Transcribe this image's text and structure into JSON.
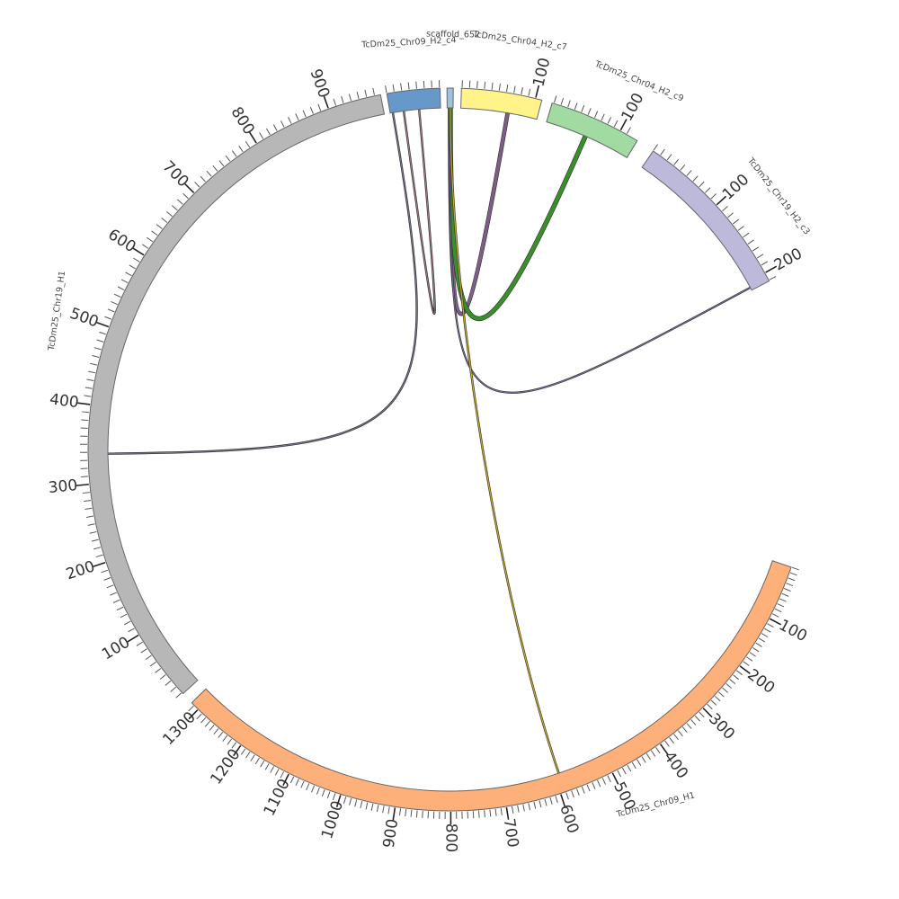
{
  "diagram": {
    "type": "circos",
    "segments": [
      {
        "id": "chr09_h1",
        "label": "TcDm25_Chr09_H1",
        "color": "#fdb07a",
        "length": 1340,
        "ticks": [
          "100",
          "200",
          "300",
          "400",
          "500",
          "600",
          "700",
          "800",
          "900",
          "1000",
          "1100",
          "1200",
          "1300"
        ]
      },
      {
        "id": "chr19_h1",
        "label": "TcDm25_Chr19_H1",
        "color": "#b7b7b7",
        "length": 960,
        "ticks": [
          "100",
          "200",
          "300",
          "400",
          "500",
          "600",
          "700",
          "800",
          "900"
        ]
      },
      {
        "id": "chr09_h2_c4",
        "label": "TcDm25_Chr09_H2_c4",
        "color": "#6699c9",
        "length": 70,
        "ticks": []
      },
      {
        "id": "scaffold_652",
        "label": "scaffold_652",
        "color": "#9ec1dc",
        "length": 10,
        "ticks": []
      },
      {
        "id": "chr04_h2_c7",
        "label": "TcDm25_Chr04_H2_c7",
        "color": "#fff38a",
        "length": 110,
        "ticks": [
          "100"
        ]
      },
      {
        "id": "chr04_h2_c9",
        "label": "TcDm25_Chr04_H2_c9",
        "color": "#a1dba2",
        "length": 115,
        "ticks": [
          "100"
        ]
      },
      {
        "id": "chr19_h2_c3",
        "label": "TcDm25_Chr19_H2_c3",
        "color": "#bcb9db",
        "length": 215,
        "ticks": [
          "100",
          "200"
        ]
      }
    ],
    "links": [
      {
        "from": "chr09_h2_c4",
        "to": "chr19_h1",
        "color": "#7a6f86"
      },
      {
        "from": "chr09_h2_c4",
        "to": "chr09_h2_c4",
        "color": "#9d7a8a"
      },
      {
        "from": "scaffold_652",
        "to": "chr04_h2_c7",
        "color": "#7d5f85"
      },
      {
        "from": "scaffold_652",
        "to": "chr04_h2_c9",
        "color": "#3a8f2c"
      },
      {
        "from": "scaffold_652",
        "to": "chr19_h2_c3",
        "color": "#7b6f9a"
      },
      {
        "from": "scaffold_652",
        "to": "chr09_h1",
        "color": "#c4a82f"
      }
    ]
  }
}
